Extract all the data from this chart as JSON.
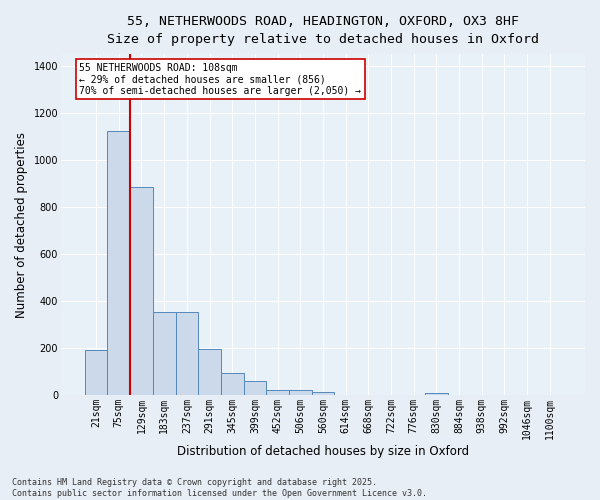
{
  "title_line1": "55, NETHERWOODS ROAD, HEADINGTON, OXFORD, OX3 8HF",
  "title_line2": "Size of property relative to detached houses in Oxford",
  "xlabel": "Distribution of detached houses by size in Oxford",
  "ylabel": "Number of detached properties",
  "bar_labels": [
    "21sqm",
    "75sqm",
    "129sqm",
    "183sqm",
    "237sqm",
    "291sqm",
    "345sqm",
    "399sqm",
    "452sqm",
    "506sqm",
    "560sqm",
    "614sqm",
    "668sqm",
    "722sqm",
    "776sqm",
    "830sqm",
    "884sqm",
    "938sqm",
    "992sqm",
    "1046sqm",
    "1100sqm"
  ],
  "bar_values": [
    193,
    1125,
    885,
    355,
    355,
    195,
    95,
    58,
    20,
    20,
    13,
    0,
    0,
    0,
    0,
    10,
    0,
    0,
    0,
    0,
    0
  ],
  "bar_color": "#ccd9ea",
  "bar_edge_color": "#5588bb",
  "vline_color": "#cc0000",
  "annotation_text": "55 NETHERWOODS ROAD: 108sqm\n← 29% of detached houses are smaller (856)\n70% of semi-detached houses are larger (2,050) →",
  "annotation_box_color": "#ffffff",
  "annotation_box_edge": "#cc0000",
  "ylim": [
    0,
    1450
  ],
  "yticks": [
    0,
    200,
    400,
    600,
    800,
    1000,
    1200,
    1400
  ],
  "bg_color": "#e8eef5",
  "plot_bg_color": "#e8f0f8",
  "grid_color": "#ffffff",
  "footer_text": "Contains HM Land Registry data © Crown copyright and database right 2025.\nContains public sector information licensed under the Open Government Licence v3.0.",
  "title_fontsize": 9.5,
  "subtitle_fontsize": 9.5,
  "axis_label_fontsize": 8.5,
  "tick_fontsize": 7,
  "annotation_fontsize": 7,
  "footer_fontsize": 6
}
